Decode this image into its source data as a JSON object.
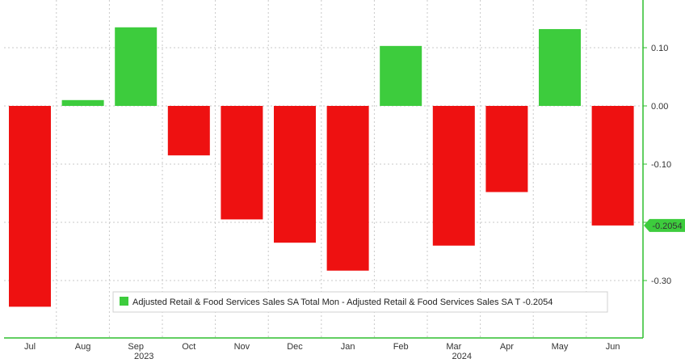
{
  "chart_data": {
    "type": "bar",
    "categories": [
      "Jul",
      "Aug",
      "Sep",
      "Oct",
      "Nov",
      "Dec",
      "Jan",
      "Feb",
      "Mar",
      "Apr",
      "May",
      "Jun"
    ],
    "values": [
      -0.345,
      0.01,
      0.135,
      -0.085,
      -0.195,
      -0.235,
      -0.283,
      0.103,
      -0.24,
      -0.148,
      0.132,
      -0.2054
    ],
    "year_labels": [
      {
        "text": "2023",
        "under": "Sep"
      },
      {
        "text": "2024",
        "under": "Mar"
      }
    ],
    "y_ticks": [
      0.1,
      0.0,
      -0.1,
      -0.2,
      -0.3
    ],
    "y_tick_labels": [
      "0.10",
      "0.00",
      "-0.10",
      "",
      "-0.30"
    ],
    "ylim": [
      -0.395,
      0.18
    ],
    "last_value_label": "-0.2054",
    "grid": true,
    "legend": {
      "position": "bottom-right",
      "entries": [
        {
          "label": "Adjusted Retail & Food Services Sales SA Total Mon - Adjusted Retail & Food Services Sales SA T  -0.2054",
          "color": "#3dcc3d"
        }
      ]
    },
    "colors": {
      "positive": "#3dcc3d",
      "negative": "#ee1111",
      "axis": "#2fbf2f",
      "grid": "#c9c9c9"
    }
  }
}
